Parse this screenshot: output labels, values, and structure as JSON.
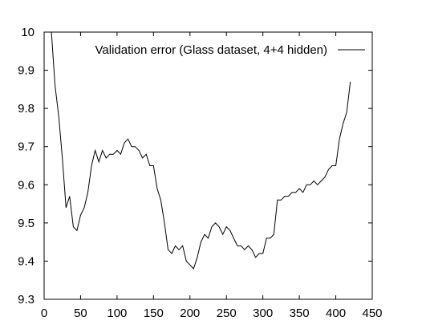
{
  "chart_data": {
    "type": "line",
    "title": "",
    "xlabel": "",
    "ylabel": "",
    "xlim": [
      0,
      450
    ],
    "ylim": [
      9.3,
      10
    ],
    "x_ticks": [
      0,
      50,
      100,
      150,
      200,
      250,
      300,
      350,
      400,
      450
    ],
    "y_ticks": [
      9.3,
      9.4,
      9.5,
      9.6,
      9.7,
      9.8,
      9.9,
      10
    ],
    "x_tick_labels": [
      "0",
      "50",
      "100",
      "150",
      "200",
      "250",
      "300",
      "350",
      "400",
      "450"
    ],
    "y_tick_labels": [
      "9.3",
      "9.4",
      "9.5",
      "9.6",
      "9.7",
      "9.8",
      "9.9",
      "10"
    ],
    "grid": false,
    "legend_position": "top-right",
    "series": [
      {
        "name": "Validation error (Glass dataset, 4+4 hidden)",
        "color": "#000000",
        "points": [
          [
            10,
            10.0
          ],
          [
            15,
            9.86
          ],
          [
            20,
            9.78
          ],
          [
            25,
            9.67
          ],
          [
            30,
            9.54
          ],
          [
            35,
            9.57
          ],
          [
            40,
            9.49
          ],
          [
            45,
            9.48
          ],
          [
            50,
            9.52
          ],
          [
            55,
            9.54
          ],
          [
            60,
            9.58
          ],
          [
            65,
            9.65
          ],
          [
            70,
            9.69
          ],
          [
            75,
            9.66
          ],
          [
            80,
            9.69
          ],
          [
            85,
            9.67
          ],
          [
            90,
            9.68
          ],
          [
            95,
            9.68
          ],
          [
            100,
            9.69
          ],
          [
            105,
            9.68
          ],
          [
            110,
            9.71
          ],
          [
            115,
            9.72
          ],
          [
            120,
            9.7
          ],
          [
            125,
            9.7
          ],
          [
            130,
            9.69
          ],
          [
            135,
            9.67
          ],
          [
            140,
            9.68
          ],
          [
            145,
            9.65
          ],
          [
            150,
            9.65
          ],
          [
            155,
            9.59
          ],
          [
            160,
            9.56
          ],
          [
            165,
            9.5
          ],
          [
            170,
            9.43
          ],
          [
            175,
            9.42
          ],
          [
            180,
            9.44
          ],
          [
            185,
            9.43
          ],
          [
            190,
            9.44
          ],
          [
            195,
            9.4
          ],
          [
            200,
            9.39
          ],
          [
            205,
            9.38
          ],
          [
            210,
            9.41
          ],
          [
            215,
            9.45
          ],
          [
            220,
            9.47
          ],
          [
            225,
            9.46
          ],
          [
            230,
            9.49
          ],
          [
            235,
            9.5
          ],
          [
            240,
            9.49
          ],
          [
            245,
            9.47
          ],
          [
            250,
            9.49
          ],
          [
            255,
            9.48
          ],
          [
            260,
            9.46
          ],
          [
            265,
            9.44
          ],
          [
            270,
            9.44
          ],
          [
            275,
            9.43
          ],
          [
            280,
            9.44
          ],
          [
            285,
            9.43
          ],
          [
            290,
            9.41
          ],
          [
            295,
            9.42
          ],
          [
            300,
            9.42
          ],
          [
            305,
            9.46
          ],
          [
            310,
            9.46
          ],
          [
            315,
            9.47
          ],
          [
            320,
            9.56
          ],
          [
            325,
            9.56
          ],
          [
            330,
            9.57
          ],
          [
            335,
            9.57
          ],
          [
            340,
            9.58
          ],
          [
            345,
            9.58
          ],
          [
            350,
            9.59
          ],
          [
            355,
            9.58
          ],
          [
            360,
            9.6
          ],
          [
            365,
            9.6
          ],
          [
            370,
            9.61
          ],
          [
            375,
            9.6
          ],
          [
            380,
            9.61
          ],
          [
            385,
            9.62
          ],
          [
            390,
            9.64
          ],
          [
            395,
            9.65
          ],
          [
            400,
            9.65
          ],
          [
            405,
            9.72
          ],
          [
            410,
            9.76
          ],
          [
            415,
            9.79
          ],
          [
            420,
            9.87
          ]
        ]
      }
    ]
  }
}
